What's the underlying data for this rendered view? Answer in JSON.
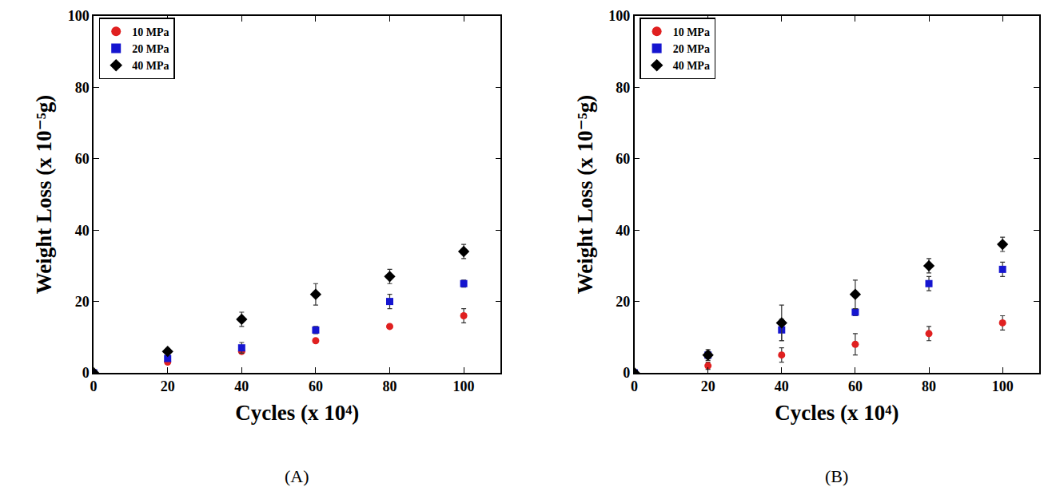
{
  "chart_data": [
    {
      "type": "scatter",
      "title": "(A)",
      "x_label": "Cycles (x 10⁴)",
      "y_label": "Weight Loss (x 10⁻⁵g)",
      "x": [
        0,
        20,
        40,
        60,
        80,
        100
      ],
      "series": [
        {
          "name": "10 MPa",
          "color": "#e02020",
          "marker": "circle",
          "values": [
            0,
            3,
            6,
            9,
            13,
            16
          ],
          "errors": [
            0,
            0.5,
            0.5,
            0.5,
            0.5,
            2
          ]
        },
        {
          "name": "20 MPa",
          "color": "#1515d0",
          "marker": "square",
          "values": [
            0,
            4,
            7,
            12,
            20,
            25
          ],
          "errors": [
            0,
            0.5,
            1.5,
            1,
            2,
            1
          ]
        },
        {
          "name": "40 MPa",
          "color": "#000000",
          "marker": "diamond",
          "values": [
            0,
            6,
            15,
            22,
            27,
            34
          ],
          "errors": [
            0,
            0.5,
            2,
            3,
            2,
            2
          ]
        }
      ],
      "xlim": [
        0,
        110
      ],
      "xticks": [
        0,
        20,
        40,
        60,
        80,
        100
      ],
      "ylim": [
        0,
        100
      ],
      "yticks": [
        0,
        20,
        40,
        60,
        80,
        100
      ],
      "grid": false,
      "legend": "upper left"
    },
    {
      "type": "scatter",
      "title": "(B)",
      "x_label": "Cycles (x 10⁴)",
      "y_label": "Weight Loss (x 10⁻⁵g)",
      "x": [
        0,
        20,
        40,
        60,
        80,
        100
      ],
      "series": [
        {
          "name": "10 MPa",
          "color": "#e02020",
          "marker": "circle",
          "values": [
            0,
            2,
            5,
            8,
            11,
            14
          ],
          "errors": [
            0,
            1,
            2,
            3,
            2,
            2
          ]
        },
        {
          "name": "20 MPa",
          "color": "#1515d0",
          "marker": "square",
          "values": [
            0,
            5,
            12,
            17,
            25,
            29
          ],
          "errors": [
            0,
            1.5,
            3,
            1,
            2,
            2
          ]
        },
        {
          "name": "40 MPa",
          "color": "#000000",
          "marker": "diamond",
          "values": [
            0,
            5,
            14,
            22,
            30,
            36
          ],
          "errors": [
            0,
            1,
            5,
            4,
            2,
            2
          ]
        }
      ],
      "xlim": [
        0,
        110
      ],
      "xticks": [
        0,
        20,
        40,
        60,
        80,
        100
      ],
      "ylim": [
        0,
        100
      ],
      "yticks": [
        0,
        20,
        40,
        60,
        80,
        100
      ],
      "grid": false,
      "legend": "upper left"
    }
  ]
}
